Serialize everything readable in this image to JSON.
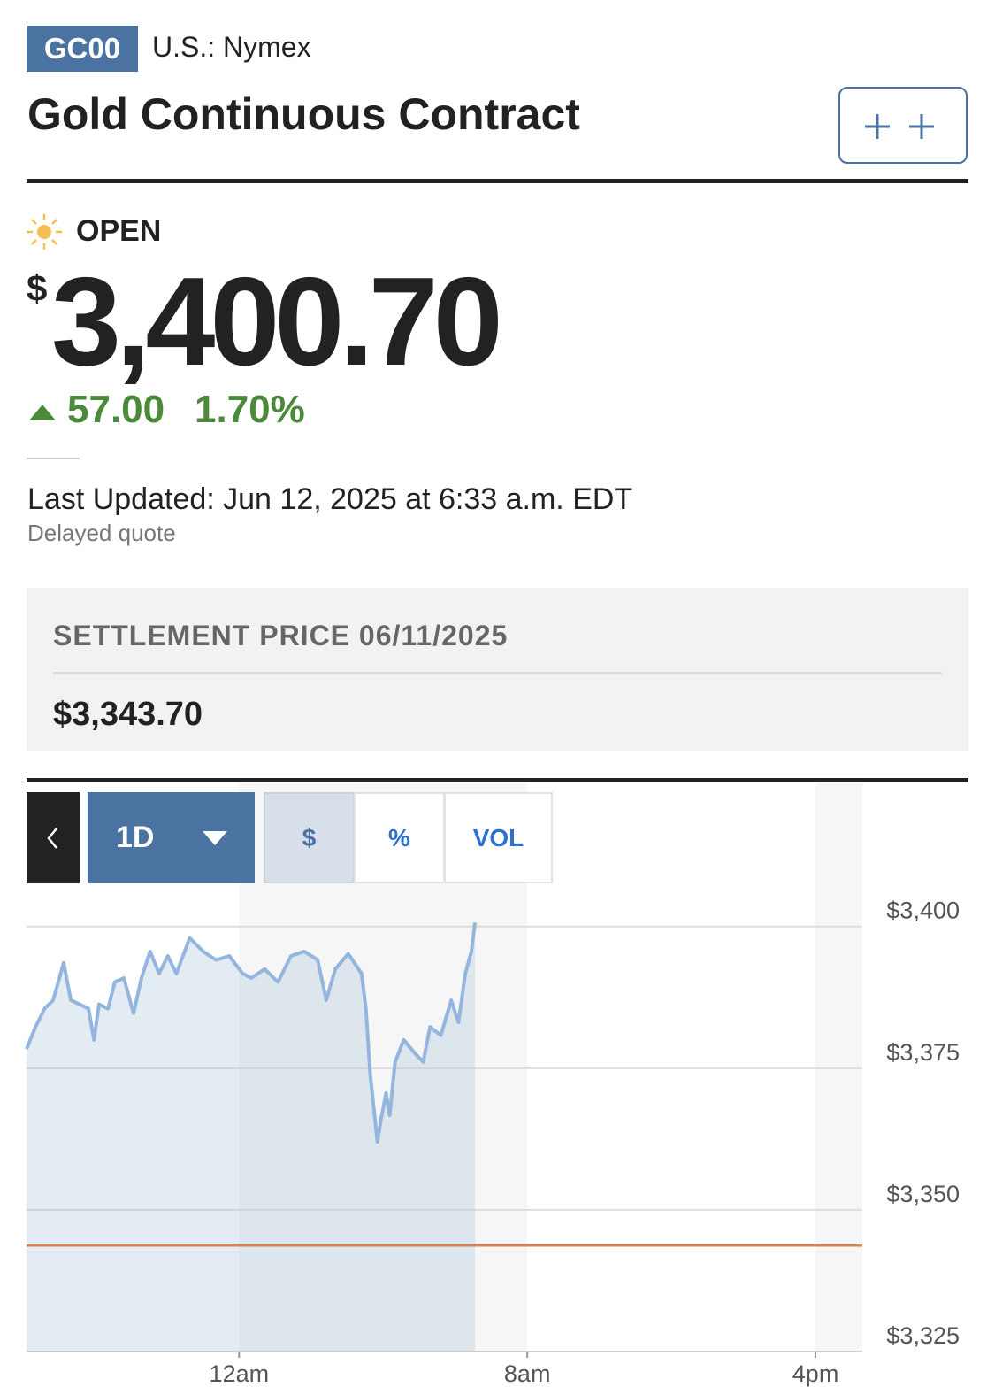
{
  "header": {
    "symbol": "GC00",
    "exchange": "U.S.: Nymex",
    "title": "Gold Continuous Contract"
  },
  "quote": {
    "status": "OPEN",
    "currency": "$",
    "price": "3,400.70",
    "change": "57.00",
    "change_percent": "1.70%",
    "last_updated": "Last Updated: Jun 12, 2025 at 6:33 a.m. EDT",
    "note": "Delayed quote"
  },
  "settlement": {
    "label": "SETTLEMENT PRICE 06/11/2025",
    "value": "$3,343.70"
  },
  "toolbar": {
    "range": "1D",
    "modes": [
      "$",
      "%",
      "VOL"
    ]
  },
  "chart_data": {
    "type": "line",
    "x": [
      -5.9,
      -5.65,
      -5.4,
      -5.16,
      -4.87,
      -4.67,
      -4.43,
      -4.18,
      -4.03,
      -3.89,
      -3.64,
      -3.45,
      -3.2,
      -2.93,
      -2.71,
      -2.47,
      -2.22,
      -1.98,
      -1.74,
      -1.37,
      -1.0,
      -0.64,
      -0.27,
      0.1,
      0.34,
      0.71,
      1.08,
      1.44,
      1.81,
      2.18,
      2.42,
      2.67,
      3.03,
      3.4,
      3.52,
      3.64,
      3.84,
      3.94,
      4.08,
      4.18,
      4.33,
      4.57,
      4.87,
      5.11,
      5.3,
      5.6,
      5.89,
      6.09,
      6.28,
      6.45,
      6.55
    ],
    "values": [
      3378.4,
      3382.3,
      3385.5,
      3387.0,
      3393.6,
      3387.0,
      3386.3,
      3385.5,
      3380.0,
      3386.3,
      3385.5,
      3390.2,
      3390.9,
      3384.7,
      3390.9,
      3395.6,
      3391.7,
      3394.8,
      3391.7,
      3398.0,
      3395.6,
      3394.1,
      3394.8,
      3391.7,
      3390.9,
      3392.5,
      3390.2,
      3394.8,
      3395.6,
      3394.1,
      3387.0,
      3392.5,
      3395.2,
      3391.7,
      3385.5,
      3373.8,
      3362.0,
      3366.0,
      3370.6,
      3366.7,
      3376.1,
      3380.0,
      3377.7,
      3376.1,
      3382.3,
      3380.8,
      3387.0,
      3383.1,
      3391.7,
      3395.6,
      3400.7
    ],
    "color": "#94b6de",
    "xlim": [
      -5.9,
      17.3
    ],
    "xticks": [
      {
        "value": 0,
        "label": "12am"
      },
      {
        "value": 8,
        "label": "8am"
      },
      {
        "value": 16,
        "label": "4pm"
      }
    ],
    "ylim": [
      3325,
      3407.3
    ],
    "yticks": [
      {
        "value": 3325,
        "label": "$3,325"
      },
      {
        "value": 3350,
        "label": "$3,350"
      },
      {
        "value": 3375,
        "label": "$3,375"
      },
      {
        "value": 3400,
        "label": "$3,400"
      }
    ],
    "grid": true,
    "reference_value": 3343.7,
    "reference_color": "#d9834a"
  }
}
